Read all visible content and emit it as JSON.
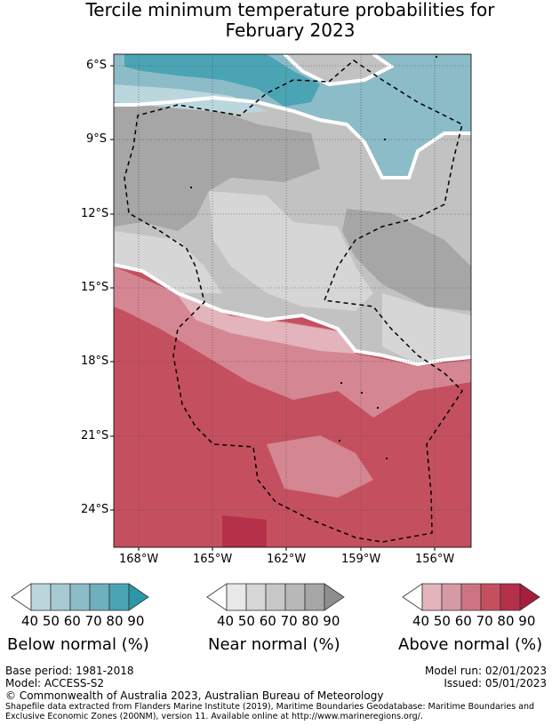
{
  "title": {
    "line1": "Tercile minimum temperature probabilities for",
    "line2": "February 2023"
  },
  "map": {
    "lat_labels": [
      "6°S",
      "9°S",
      "12°S",
      "15°S",
      "18°S",
      "21°S",
      "24°S"
    ],
    "lon_labels": [
      "168°W",
      "165°W",
      "162°W",
      "159°W",
      "156°W"
    ],
    "colors": {
      "teal_light": "#bcd6dd",
      "teal_mid": "#8cbcc8",
      "teal_dark": "#4aa4b4",
      "grey_light": "#d6d6d6",
      "grey_mid": "#c2c2c2",
      "grey_dark": "#a6a6a6",
      "red_light": "#e3b4bc",
      "red_mid": "#d48792",
      "red_dark": "#c4505f"
    }
  },
  "legends": {
    "below": {
      "numbers": "40 50 60 70 80 90",
      "caption": "Below normal (%)"
    },
    "near": {
      "numbers": "40 50 60 70 80 90",
      "caption": "Near normal (%)"
    },
    "above": {
      "numbers": "40 50 60 70 80 90",
      "caption": "Above normal (%)"
    }
  },
  "footer": {
    "base_period": "Base period: 1981-2018",
    "model": "Model: ACCESS-S2",
    "model_run": "Model run: 02/01/2023",
    "issued": "Issued: 05/01/2023",
    "copyright": "© Commonwealth of Australia 2023, Australian Bureau of Meteorology",
    "shapefile": "Shapefile data extracted from Flanders Marine Institute (2019), Maritime Boundaries Geodatabase: Maritime Boundaries and Exclusive Economic Zones (200NM), version 11. Available online at http://www.marineregions.org/."
  }
}
